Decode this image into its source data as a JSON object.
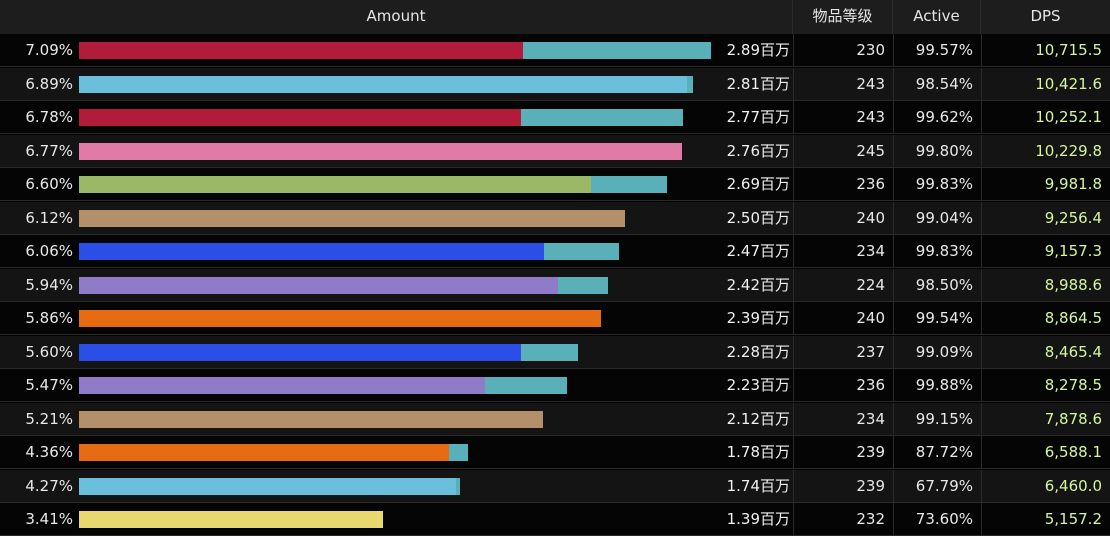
{
  "header": {
    "amount": "Amount",
    "ilvl": "物品等级",
    "active": "Active",
    "dps": "DPS"
  },
  "rows": [
    {
      "pct": "7.09%",
      "amount": "2.89百万",
      "ilvl": "230",
      "active": "99.57%",
      "dps": "10,715.5",
      "main_color": "#b01c3a",
      "main_frac": 0.703,
      "sub_color": "#5ab0b8",
      "sub_frac": 0.297
    },
    {
      "pct": "6.89%",
      "amount": "2.81百万",
      "ilvl": "243",
      "active": "98.54%",
      "dps": "10,421.6",
      "main_color": "#6ac0dc",
      "main_frac": 0.99,
      "sub_color": "#5ab0b8",
      "sub_frac": 0.01
    },
    {
      "pct": "6.78%",
      "amount": "2.77百万",
      "ilvl": "243",
      "active": "99.62%",
      "dps": "10,252.1",
      "main_color": "#b01c3a",
      "main_frac": 0.732,
      "sub_color": "#5ab0b8",
      "sub_frac": 0.268
    },
    {
      "pct": "6.77%",
      "amount": "2.76百万",
      "ilvl": "245",
      "active": "99.80%",
      "dps": "10,229.8",
      "main_color": "#e07aa6",
      "main_frac": 1.0,
      "sub_color": "#5ab0b8",
      "sub_frac": 0.0
    },
    {
      "pct": "6.60%",
      "amount": "2.69百万",
      "ilvl": "236",
      "active": "99.83%",
      "dps": "9,981.8",
      "main_color": "#9ab865",
      "main_frac": 0.87,
      "sub_color": "#5ab0b8",
      "sub_frac": 0.13
    },
    {
      "pct": "6.12%",
      "amount": "2.50百万",
      "ilvl": "240",
      "active": "99.04%",
      "dps": "9,256.4",
      "main_color": "#b38f6a",
      "main_frac": 1.0,
      "sub_color": "#5ab0b8",
      "sub_frac": 0.0
    },
    {
      "pct": "6.06%",
      "amount": "2.47百万",
      "ilvl": "234",
      "active": "99.83%",
      "dps": "9,157.3",
      "main_color": "#2a4ee6",
      "main_frac": 0.86,
      "sub_color": "#5ab0b8",
      "sub_frac": 0.14
    },
    {
      "pct": "5.94%",
      "amount": "2.42百万",
      "ilvl": "224",
      "active": "98.50%",
      "dps": "8,988.6",
      "main_color": "#8f7cc8",
      "main_frac": 0.905,
      "sub_color": "#5ab0b8",
      "sub_frac": 0.095
    },
    {
      "pct": "5.86%",
      "amount": "2.39百万",
      "ilvl": "240",
      "active": "99.54%",
      "dps": "8,864.5",
      "main_color": "#e56c12",
      "main_frac": 1.0,
      "sub_color": "#5ab0b8",
      "sub_frac": 0.0
    },
    {
      "pct": "5.60%",
      "amount": "2.28百万",
      "ilvl": "237",
      "active": "99.09%",
      "dps": "8,465.4",
      "main_color": "#2a4ee6",
      "main_frac": 0.886,
      "sub_color": "#5ab0b8",
      "sub_frac": 0.114
    },
    {
      "pct": "5.47%",
      "amount": "2.23百万",
      "ilvl": "236",
      "active": "99.88%",
      "dps": "8,278.5",
      "main_color": "#8f7cc8",
      "main_frac": 0.833,
      "sub_color": "#5ab0b8",
      "sub_frac": 0.167
    },
    {
      "pct": "5.21%",
      "amount": "2.12百万",
      "ilvl": "234",
      "active": "99.15%",
      "dps": "7,878.6",
      "main_color": "#b38f6a",
      "main_frac": 1.0,
      "sub_color": "#5ab0b8",
      "sub_frac": 0.0
    },
    {
      "pct": "4.36%",
      "amount": "1.78百万",
      "ilvl": "239",
      "active": "87.72%",
      "dps": "6,588.1",
      "main_color": "#e56c12",
      "main_frac": 0.952,
      "sub_color": "#5ab0b8",
      "sub_frac": 0.048
    },
    {
      "pct": "4.27%",
      "amount": "1.74百万",
      "ilvl": "239",
      "active": "67.79%",
      "dps": "6,460.0",
      "main_color": "#6ac0dc",
      "main_frac": 0.99,
      "sub_color": "#5ab0b8",
      "sub_frac": 0.01
    },
    {
      "pct": "3.41%",
      "amount": "1.39百万",
      "ilvl": "232",
      "active": "73.60%",
      "dps": "5,157.2",
      "main_color": "#e8d870",
      "main_frac": 1.0,
      "sub_color": "#5ab0b8",
      "sub_frac": 0.0
    }
  ]
}
